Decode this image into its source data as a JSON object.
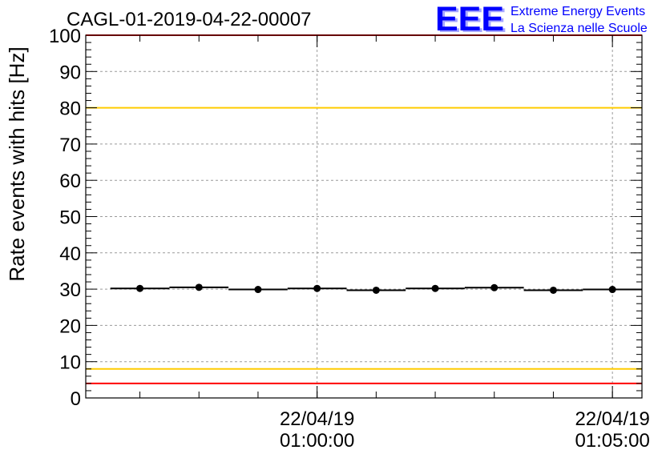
{
  "chart_data": {
    "type": "scatter",
    "title": "CAGL-01-2019-04-22-00007",
    "xlabel": "",
    "ylabel": "Rate events with hits [Hz]",
    "ylim": [
      0,
      100
    ],
    "xlim": [
      "2019-04-22T00:56:05",
      "2019-04-22T01:05:30"
    ],
    "yticks": [
      0,
      10,
      20,
      30,
      40,
      50,
      60,
      70,
      80,
      90,
      100
    ],
    "xtick_labels": [
      {
        "date": "22/04/19",
        "time": "01:00:00",
        "x": "2019-04-22T01:00:00"
      },
      {
        "date": "22/04/19",
        "time": "01:05:00",
        "x": "2019-04-22T01:05:00"
      }
    ],
    "grid": true,
    "legend": "none",
    "series": [
      {
        "x": [
          "2019-04-22T00:57:00",
          "2019-04-22T00:58:00",
          "2019-04-22T00:59:00",
          "2019-04-22T01:00:00",
          "2019-04-22T01:01:00",
          "2019-04-22T01:02:00",
          "2019-04-22T01:03:00",
          "2019-04-22T01:04:00",
          "2019-04-22T01:05:00"
        ],
        "values": [
          30.2,
          30.5,
          29.9,
          30.2,
          29.7,
          30.2,
          30.4,
          29.7,
          29.9
        ],
        "color": "#000000"
      }
    ],
    "reference_lines": [
      {
        "y": 100,
        "color": "#ff0000"
      },
      {
        "y": 80,
        "color": "#ffcc00"
      },
      {
        "y": 8,
        "color": "#ffcc00"
      },
      {
        "y": 4,
        "color": "#ff0000"
      }
    ]
  },
  "logo": {
    "mark": "EEE",
    "line1": "Extreme Energy Events",
    "line2": "La Scienza nelle Scuole",
    "color": "#0000ff"
  }
}
